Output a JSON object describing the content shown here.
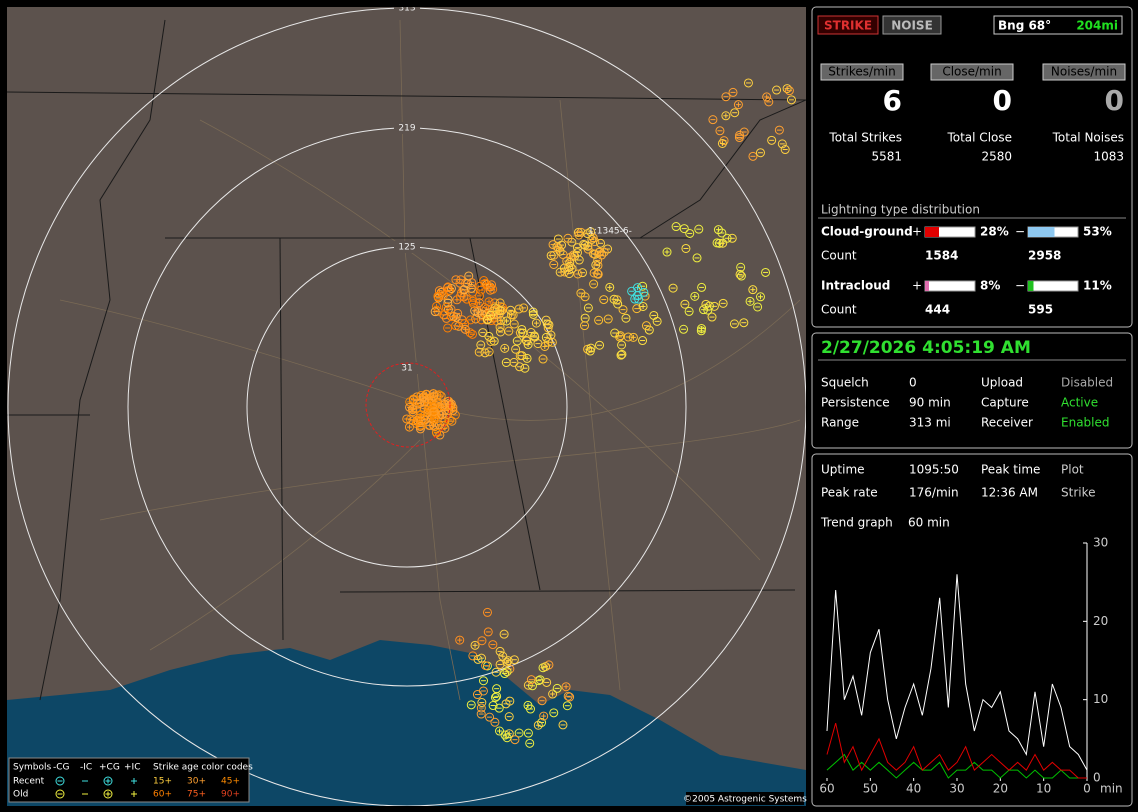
{
  "map": {
    "range_labels": [
      "313",
      "219",
      "125",
      "31"
    ],
    "cursor_label": "1:1345-6-",
    "legend": {
      "headers": [
        "Symbols",
        "-CG",
        "-IC",
        "+CG",
        "+IC",
        "Strike age color codes"
      ],
      "rows": [
        {
          "label": "Recent",
          "ages": [
            "15+",
            "30+",
            "45+"
          ]
        },
        {
          "label": "Old",
          "ages": [
            "60+",
            "75+",
            "90+"
          ]
        }
      ]
    },
    "copyright": "©2005 Astrogenic Systems"
  },
  "panel": {
    "mode_buttons": [
      "STRIKE",
      "NOISE"
    ],
    "bearing": "Bng 68°",
    "distance": "204mi",
    "rates": [
      {
        "label": "Strikes/min",
        "value": "6",
        "total_label": "Total Strikes",
        "total": "5581"
      },
      {
        "label": "Close/min",
        "value": "0",
        "total_label": "Total Close",
        "total": "2580"
      },
      {
        "label": "Noises/min",
        "value": "0",
        "total_label": "Total Noises",
        "total": "1083"
      }
    ],
    "distribution": {
      "title": "Lightning type distribution",
      "rows": [
        {
          "label": "Cloud-ground",
          "count_label": "Count",
          "plus": {
            "sign": "+",
            "percent": 28,
            "percent_label": "28%",
            "count": "1584",
            "color": "#e00000"
          },
          "minus": {
            "sign": "−",
            "percent": 53,
            "percent_label": "53%",
            "count": "2958",
            "color": "#8ec8f0"
          }
        },
        {
          "label": "Intracloud",
          "count_label": "Count",
          "plus": {
            "sign": "+",
            "percent": 8,
            "percent_label": "8%",
            "count": "444",
            "color": "#e070b0"
          },
          "minus": {
            "sign": "−",
            "percent": 11,
            "percent_label": "11%",
            "count": "595",
            "color": "#20c020"
          }
        }
      ]
    },
    "datetime": "2/27/2026 4:05:19 AM",
    "status": [
      [
        "Squelch",
        "0",
        "Upload",
        "Disabled"
      ],
      [
        "Persistence",
        "90 min",
        "Capture",
        "Active"
      ],
      [
        "Range",
        "313 mi",
        "Receiver",
        "Enabled"
      ]
    ],
    "stats": [
      [
        "Uptime",
        "1095:50",
        "Peak time",
        "Plot"
      ],
      [
        "Peak rate",
        "176/min",
        "12:36 AM",
        "Strike"
      ]
    ],
    "trend_label": "Trend graph",
    "trend_value": "60 min"
  },
  "chart_data": {
    "type": "line",
    "x_label": "min",
    "x": [
      60,
      58,
      56,
      54,
      52,
      50,
      48,
      46,
      44,
      42,
      40,
      38,
      36,
      34,
      32,
      30,
      28,
      26,
      24,
      22,
      20,
      18,
      16,
      14,
      12,
      10,
      8,
      6,
      4,
      2,
      0
    ],
    "xlim": [
      60,
      0
    ],
    "xticks": [
      60,
      50,
      40,
      30,
      20,
      10,
      0
    ],
    "ylim": [
      0,
      30
    ],
    "yticks": [
      30,
      20,
      10,
      0
    ],
    "series": [
      {
        "color": "#00c000",
        "values": [
          1,
          2,
          3,
          1,
          2,
          1,
          2,
          1,
          0,
          1,
          2,
          1,
          1,
          2,
          0,
          1,
          1,
          2,
          1,
          1,
          0,
          1,
          1,
          0,
          1,
          0,
          0,
          1,
          0,
          0,
          0
        ]
      },
      {
        "color": "#e00000",
        "values": [
          3,
          7,
          2,
          4,
          1,
          3,
          5,
          2,
          1,
          2,
          4,
          1,
          2,
          3,
          1,
          2,
          4,
          1,
          2,
          3,
          2,
          1,
          2,
          1,
          3,
          1,
          2,
          1,
          1,
          0,
          0
        ]
      },
      {
        "color": "#ffffff",
        "values": [
          6,
          24,
          10,
          13,
          8,
          16,
          19,
          10,
          5,
          9,
          12,
          8,
          14,
          23,
          9,
          26,
          12,
          6,
          10,
          9,
          11,
          6,
          5,
          3,
          11,
          4,
          12,
          9,
          4,
          3,
          1
        ]
      }
    ]
  }
}
